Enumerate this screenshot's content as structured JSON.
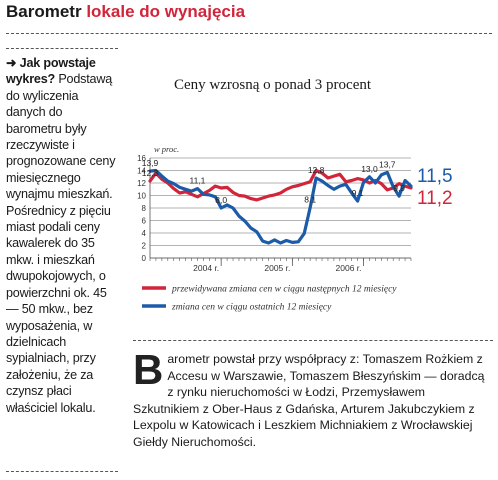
{
  "header": {
    "title_black": "Barometr",
    "title_red": "lokale do wynajęcia"
  },
  "sidebar": {
    "lead": "➜ Jak powstaje wykres?",
    "text": "Podstawą do wyliczenia danych do barometru były rzeczywiste i prognozowane ceny miesięcznego wynajmu mieszkań. Pośrednicy z pięciu miast podali ceny kawalerek do 35 mkw. i mieszkań dwupokojowych, o powierzchni ok. 45 — 50 mkw., bez wyposażenia, w dzielnicach sypialniach, przy założeniu, że za czynsz płaci właściciel lokalu."
  },
  "credits": {
    "dropcap": "B",
    "text": "arometr powstał przy współpracy z: Tomaszem Rożkiem z Accesu w Warszawie, Tomaszem Błeszyńskim — doradcą z rynku nieruchomości w Łodzi, Przemysławem Szkutnikiem z Ober-Haus z Gdańska, Arturem Jakubczykiem z Lexpolu w Katowicach i Leszkiem Michniakiem z Wrocławskiej Giełdy Nieruchomości."
  },
  "colors": {
    "red": "#d0253a",
    "blue": "#1b5ba8",
    "grid": "#9a9a9a",
    "text": "#1a1a1a"
  },
  "chart_data": {
    "type": "line",
    "title": "Ceny wzrosną o ponad 3 procent",
    "ylabel": "w proc.",
    "ylim": [
      0,
      16
    ],
    "yticks": [
      0,
      2,
      4,
      6,
      8,
      10,
      12,
      14,
      16
    ],
    "xticks": [
      {
        "label": "2004 r.",
        "at": 12
      },
      {
        "label": "2005 r.",
        "at": 24
      },
      {
        "label": "2006 r.",
        "at": 36
      }
    ],
    "x": [
      0,
      1,
      2,
      3,
      4,
      5,
      6,
      7,
      8,
      9,
      10,
      11,
      12,
      13,
      14,
      15,
      16,
      17,
      18,
      19,
      20,
      21,
      22,
      23,
      24,
      25,
      26,
      27,
      28,
      29,
      30,
      31,
      32,
      33,
      34,
      35,
      36,
      37,
      38,
      39,
      40,
      41,
      42,
      43,
      44
    ],
    "series": [
      {
        "name": "przewidywana zmiana cen w ciągu następnych 12 miesięcy",
        "color": "#d0253a",
        "values": [
          12.3,
          13.6,
          12.6,
          12.0,
          11.1,
          10.4,
          10.6,
          10.2,
          9.8,
          10.3,
          10.8,
          11.5,
          11.2,
          11.3,
          10.5,
          10.0,
          9.9,
          9.5,
          9.3,
          9.6,
          9.9,
          10.1,
          10.4,
          11.0,
          11.4,
          11.6,
          11.9,
          12.2,
          14.0,
          13.6,
          12.8,
          13.1,
          13.4,
          12.2,
          12.4,
          12.7,
          12.5,
          12.0,
          12.4,
          11.9,
          10.9,
          11.2,
          11.9,
          11.5,
          11.2
        ]
      },
      {
        "name": "zmiana cen w ciągu ostatnich 12 miesięcy",
        "color": "#1b5ba8",
        "values": [
          13.9,
          14.0,
          13.1,
          12.3,
          11.9,
          11.3,
          11.0,
          10.7,
          11.1,
          10.2,
          10.1,
          9.8,
          8.0,
          8.5,
          8.0,
          6.7,
          5.9,
          4.8,
          4.2,
          2.7,
          2.4,
          2.9,
          2.4,
          2.8,
          2.5,
          2.6,
          3.9,
          8.1,
          12.8,
          12.3,
          11.6,
          11.0,
          11.5,
          11.8,
          10.4,
          9.1,
          12.1,
          13.0,
          12.0,
          13.3,
          13.7,
          11.4,
          9.9,
          12.4,
          11.5
        ]
      }
    ],
    "annotations": [
      {
        "text": "13,9",
        "series": 1,
        "index": 0
      },
      {
        "text": "12,3",
        "series": 0,
        "index": 0
      },
      {
        "text": "11,1",
        "series": 1,
        "index": 8
      },
      {
        "text": "8,0",
        "series": 1,
        "index": 12
      },
      {
        "text": "12,8",
        "series": 1,
        "index": 28
      },
      {
        "text": "8,1",
        "series": 1,
        "index": 27
      },
      {
        "text": "13,0",
        "series": 1,
        "index": 37
      },
      {
        "text": "9,1",
        "series": 1,
        "index": 35
      },
      {
        "text": "13,7",
        "series": 1,
        "index": 40
      },
      {
        "text": "9,9",
        "series": 1,
        "index": 42
      }
    ],
    "end_labels": [
      {
        "text": "11,5",
        "color": "#1b5ba8"
      },
      {
        "text": "11,2",
        "color": "#d0253a"
      }
    ],
    "legend_position": "bottom"
  }
}
